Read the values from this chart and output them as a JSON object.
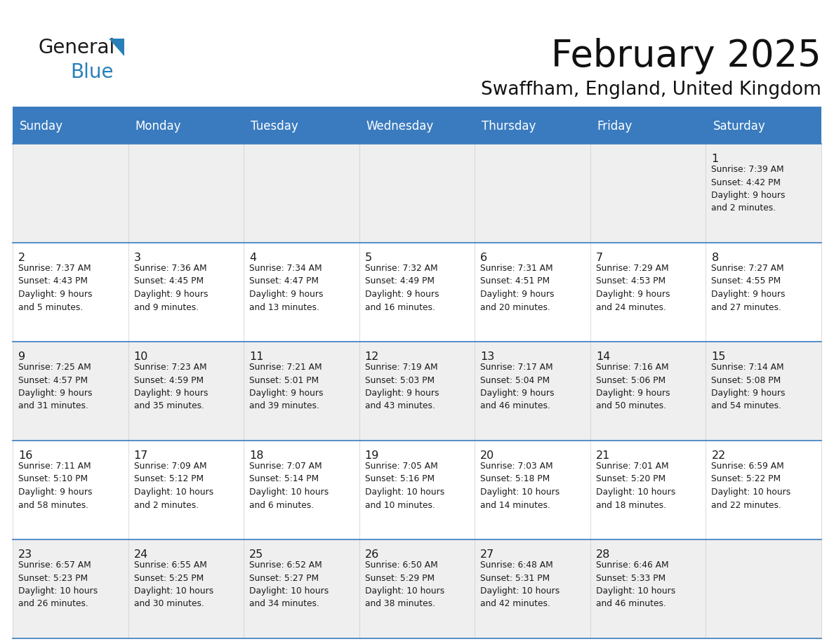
{
  "title": "February 2025",
  "subtitle": "Swaffham, England, United Kingdom",
  "header_bg": "#3a7bbf",
  "header_text": "#ffffff",
  "cell_bg_odd": "#efefef",
  "cell_bg_even": "#ffffff",
  "grid_line_color": "#3a7bbf",
  "vert_line_color": "#cccccc",
  "day_names": [
    "Sunday",
    "Monday",
    "Tuesday",
    "Wednesday",
    "Thursday",
    "Friday",
    "Saturday"
  ],
  "days": [
    {
      "day": 1,
      "col": 6,
      "row": 0,
      "sunrise": "7:39 AM",
      "sunset": "4:42 PM",
      "daylight": "9 hours and 2 minutes."
    },
    {
      "day": 2,
      "col": 0,
      "row": 1,
      "sunrise": "7:37 AM",
      "sunset": "4:43 PM",
      "daylight": "9 hours and 5 minutes."
    },
    {
      "day": 3,
      "col": 1,
      "row": 1,
      "sunrise": "7:36 AM",
      "sunset": "4:45 PM",
      "daylight": "9 hours and 9 minutes."
    },
    {
      "day": 4,
      "col": 2,
      "row": 1,
      "sunrise": "7:34 AM",
      "sunset": "4:47 PM",
      "daylight": "9 hours and 13 minutes."
    },
    {
      "day": 5,
      "col": 3,
      "row": 1,
      "sunrise": "7:32 AM",
      "sunset": "4:49 PM",
      "daylight": "9 hours and 16 minutes."
    },
    {
      "day": 6,
      "col": 4,
      "row": 1,
      "sunrise": "7:31 AM",
      "sunset": "4:51 PM",
      "daylight": "9 hours and 20 minutes."
    },
    {
      "day": 7,
      "col": 5,
      "row": 1,
      "sunrise": "7:29 AM",
      "sunset": "4:53 PM",
      "daylight": "9 hours and 24 minutes."
    },
    {
      "day": 8,
      "col": 6,
      "row": 1,
      "sunrise": "7:27 AM",
      "sunset": "4:55 PM",
      "daylight": "9 hours and 27 minutes."
    },
    {
      "day": 9,
      "col": 0,
      "row": 2,
      "sunrise": "7:25 AM",
      "sunset": "4:57 PM",
      "daylight": "9 hours and 31 minutes."
    },
    {
      "day": 10,
      "col": 1,
      "row": 2,
      "sunrise": "7:23 AM",
      "sunset": "4:59 PM",
      "daylight": "9 hours and 35 minutes."
    },
    {
      "day": 11,
      "col": 2,
      "row": 2,
      "sunrise": "7:21 AM",
      "sunset": "5:01 PM",
      "daylight": "9 hours and 39 minutes."
    },
    {
      "day": 12,
      "col": 3,
      "row": 2,
      "sunrise": "7:19 AM",
      "sunset": "5:03 PM",
      "daylight": "9 hours and 43 minutes."
    },
    {
      "day": 13,
      "col": 4,
      "row": 2,
      "sunrise": "7:17 AM",
      "sunset": "5:04 PM",
      "daylight": "9 hours and 46 minutes."
    },
    {
      "day": 14,
      "col": 5,
      "row": 2,
      "sunrise": "7:16 AM",
      "sunset": "5:06 PM",
      "daylight": "9 hours and 50 minutes."
    },
    {
      "day": 15,
      "col": 6,
      "row": 2,
      "sunrise": "7:14 AM",
      "sunset": "5:08 PM",
      "daylight": "9 hours and 54 minutes."
    },
    {
      "day": 16,
      "col": 0,
      "row": 3,
      "sunrise": "7:11 AM",
      "sunset": "5:10 PM",
      "daylight": "9 hours and 58 minutes."
    },
    {
      "day": 17,
      "col": 1,
      "row": 3,
      "sunrise": "7:09 AM",
      "sunset": "5:12 PM",
      "daylight": "10 hours and 2 minutes."
    },
    {
      "day": 18,
      "col": 2,
      "row": 3,
      "sunrise": "7:07 AM",
      "sunset": "5:14 PM",
      "daylight": "10 hours and 6 minutes."
    },
    {
      "day": 19,
      "col": 3,
      "row": 3,
      "sunrise": "7:05 AM",
      "sunset": "5:16 PM",
      "daylight": "10 hours and 10 minutes."
    },
    {
      "day": 20,
      "col": 4,
      "row": 3,
      "sunrise": "7:03 AM",
      "sunset": "5:18 PM",
      "daylight": "10 hours and 14 minutes."
    },
    {
      "day": 21,
      "col": 5,
      "row": 3,
      "sunrise": "7:01 AM",
      "sunset": "5:20 PM",
      "daylight": "10 hours and 18 minutes."
    },
    {
      "day": 22,
      "col": 6,
      "row": 3,
      "sunrise": "6:59 AM",
      "sunset": "5:22 PM",
      "daylight": "10 hours and 22 minutes."
    },
    {
      "day": 23,
      "col": 0,
      "row": 4,
      "sunrise": "6:57 AM",
      "sunset": "5:23 PM",
      "daylight": "10 hours and 26 minutes."
    },
    {
      "day": 24,
      "col": 1,
      "row": 4,
      "sunrise": "6:55 AM",
      "sunset": "5:25 PM",
      "daylight": "10 hours and 30 minutes."
    },
    {
      "day": 25,
      "col": 2,
      "row": 4,
      "sunrise": "6:52 AM",
      "sunset": "5:27 PM",
      "daylight": "10 hours and 34 minutes."
    },
    {
      "day": 26,
      "col": 3,
      "row": 4,
      "sunrise": "6:50 AM",
      "sunset": "5:29 PM",
      "daylight": "10 hours and 38 minutes."
    },
    {
      "day": 27,
      "col": 4,
      "row": 4,
      "sunrise": "6:48 AM",
      "sunset": "5:31 PM",
      "daylight": "10 hours and 42 minutes."
    },
    {
      "day": 28,
      "col": 5,
      "row": 4,
      "sunrise": "6:46 AM",
      "sunset": "5:33 PM",
      "daylight": "10 hours and 46 minutes."
    }
  ],
  "num_rows": 5,
  "num_cols": 7,
  "logo_color_general": "#1a1a1a",
  "logo_color_blue": "#2980b9",
  "logo_triangle_color": "#2980b9"
}
